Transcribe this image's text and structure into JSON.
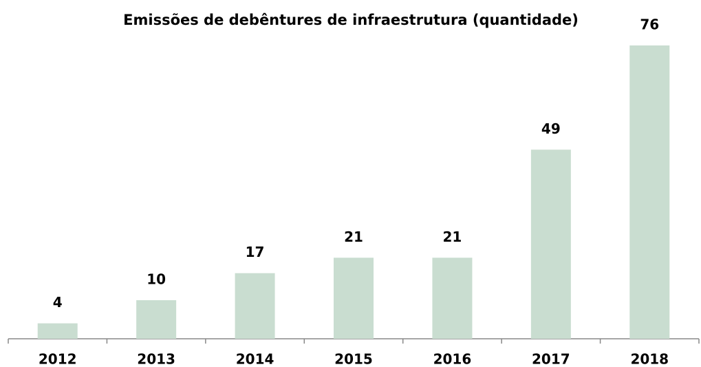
{
  "chart_data": {
    "type": "bar",
    "title": "Emissões de debêntures de infraestrutura (quantidade)",
    "categories": [
      "2012",
      "2013",
      "2014",
      "2015",
      "2016",
      "2017",
      "2018"
    ],
    "values": [
      4,
      10,
      17,
      21,
      21,
      49,
      76
    ],
    "color": "#c9ddd0",
    "ylim": [
      0,
      76
    ],
    "grid": false
  }
}
